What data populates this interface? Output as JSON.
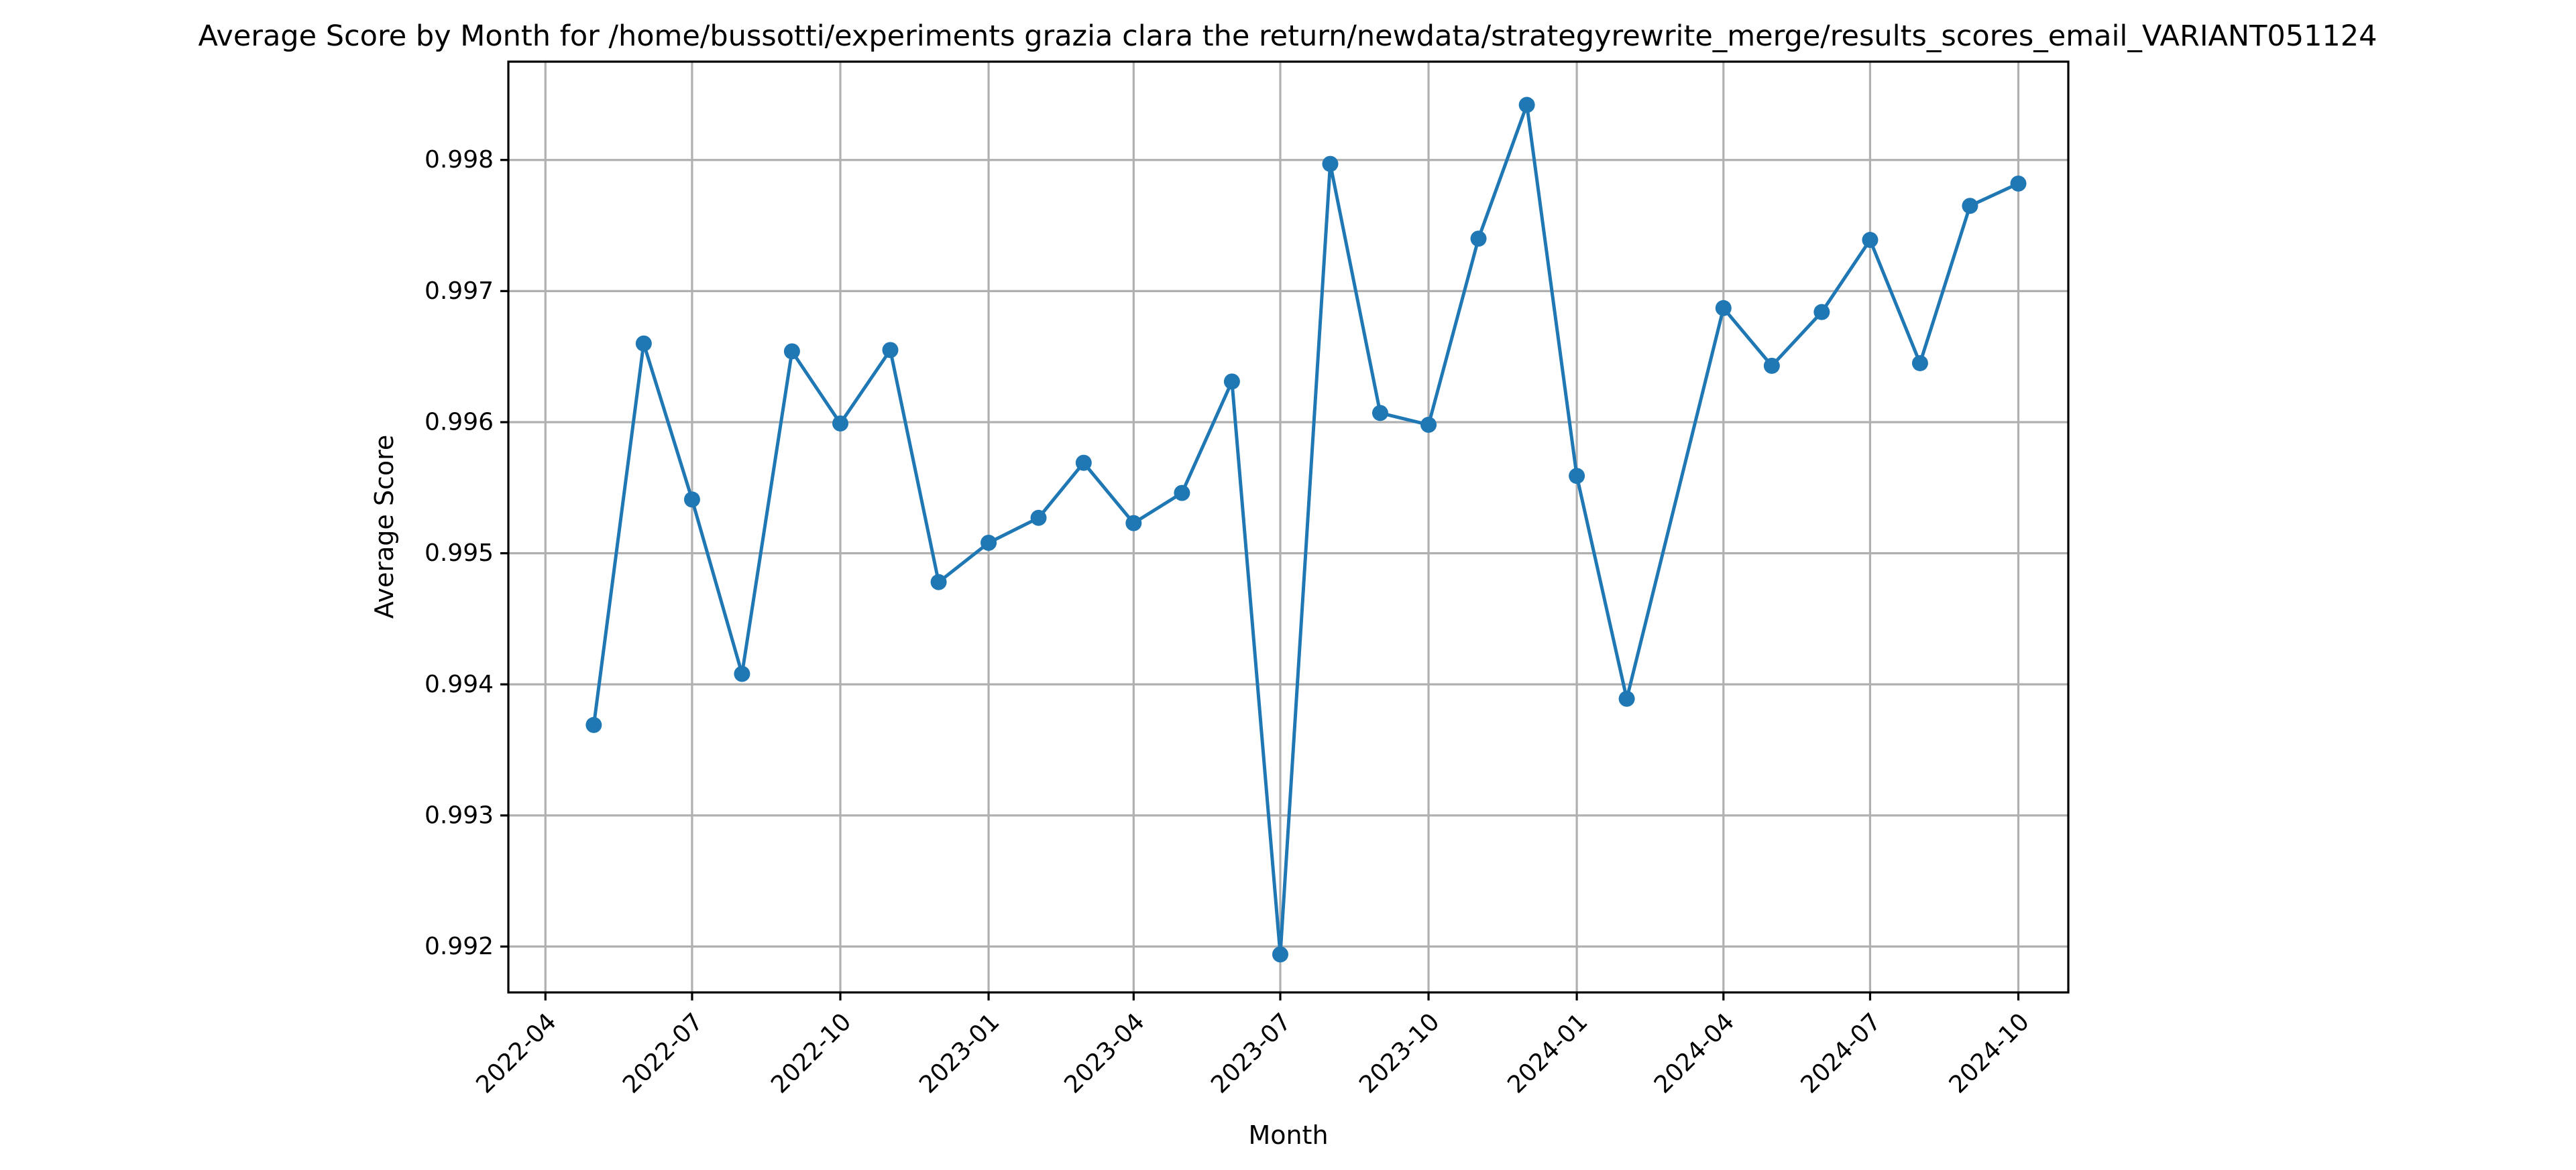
{
  "chart_data": {
    "type": "line",
    "title": "Average Score by Month for /home/bussotti/experiments grazia clara the return/newdata/strategyrewrite_merge/results_scores_email_VARIANT051124",
    "xlabel": "Month",
    "ylabel": "Average Score",
    "grid": true,
    "markers": "circle",
    "color": "#1f77b4",
    "x_ticks": [
      "2022-04",
      "2022-07",
      "2022-10",
      "2023-01",
      "2023-04",
      "2023-07",
      "2023-10",
      "2024-01",
      "2024-04",
      "2024-07",
      "2024-10"
    ],
    "y_ticks": [
      "0.992",
      "0.993",
      "0.994",
      "0.995",
      "0.996",
      "0.997",
      "0.998"
    ],
    "xlim": [
      "2022-03-09",
      "2024-11-01"
    ],
    "ylim": [
      0.99165,
      0.99875
    ],
    "x": [
      "2022-05-01",
      "2022-06-01",
      "2022-07-01",
      "2022-08-01",
      "2022-09-01",
      "2022-10-01",
      "2022-11-01",
      "2022-12-01",
      "2023-01-01",
      "2023-02-01",
      "2023-03-01",
      "2023-04-01",
      "2023-05-01",
      "2023-06-01",
      "2023-07-01",
      "2023-08-01",
      "2023-09-01",
      "2023-10-01",
      "2023-11-01",
      "2023-12-01",
      "2024-01-01",
      "2024-02-01",
      "2024-04-01",
      "2024-05-01",
      "2024-06-01",
      "2024-07-01",
      "2024-08-01",
      "2024-09-01",
      "2024-10-01"
    ],
    "y": [
      0.99369,
      0.9966,
      0.99541,
      0.99408,
      0.99654,
      0.99599,
      0.99655,
      0.99478,
      0.99508,
      0.99527,
      0.99569,
      0.99523,
      0.99546,
      0.99631,
      0.99194,
      0.99797,
      0.99607,
      0.99598,
      0.9974,
      0.99842,
      0.99559,
      0.99389,
      0.99687,
      0.99643,
      0.99684,
      0.99739,
      0.99645,
      0.99765,
      0.99782
    ]
  }
}
